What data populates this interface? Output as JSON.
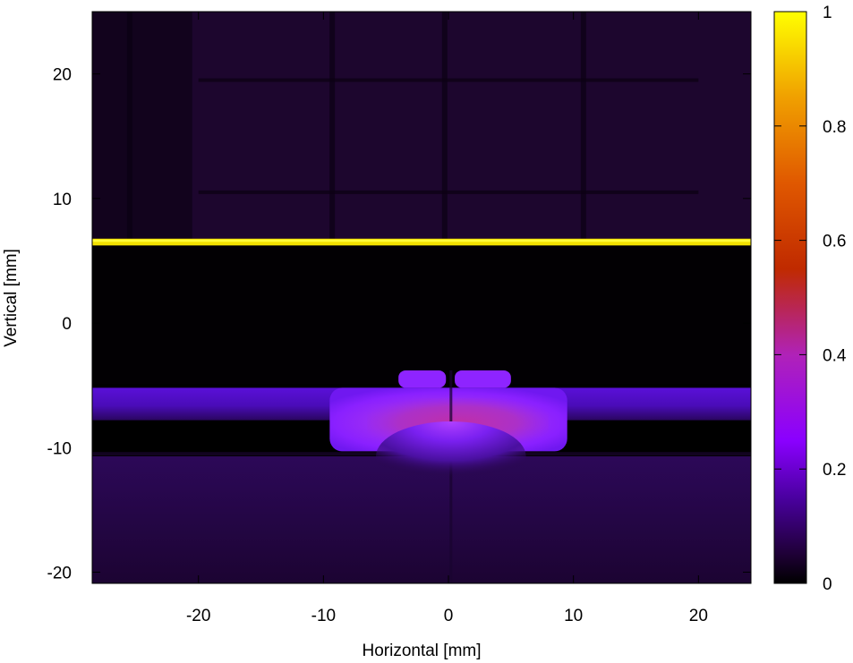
{
  "chart_data": {
    "type": "heatmap",
    "title": "",
    "xlabel": "Horizontal [mm]",
    "ylabel": "Vertical [mm]",
    "xlim": [
      -28.5,
      24.2
    ],
    "ylim": [
      -20.9,
      25.0
    ],
    "x_ticks": [
      -20,
      -10,
      0,
      10,
      20
    ],
    "y_ticks": [
      -20,
      -10,
      0,
      10,
      20
    ],
    "x_tick_labels": [
      "-20",
      "-10",
      "0",
      "10",
      "20"
    ],
    "y_tick_labels": [
      "-20",
      "-10",
      "0",
      "10",
      "20"
    ],
    "colorbar": {
      "range": [
        0,
        1
      ],
      "ticks": [
        0,
        0.2,
        0.4,
        0.6,
        0.8,
        1
      ],
      "tick_labels": [
        "0",
        "0.2",
        "0.4",
        "0.6",
        "0.8",
        "1"
      ],
      "colormap": [
        "#000000",
        "#1e0035",
        "#4a00a0",
        "#8a00ff",
        "#b022b8",
        "#c02a00",
        "#e05800",
        "#f0a000",
        "#ffff00"
      ],
      "colormap_stops": [
        0,
        0.05,
        0.15,
        0.25,
        0.4,
        0.55,
        0.7,
        0.85,
        1
      ]
    },
    "regions": [
      {
        "name": "background-top",
        "x": [
          -28.5,
          24.2
        ],
        "y": [
          6.7,
          25.0
        ],
        "value": 0.06
      },
      {
        "name": "bright-line",
        "x": [
          -28.5,
          24.2
        ],
        "y": [
          6.3,
          6.7
        ],
        "value": 1.0
      },
      {
        "name": "dark-band",
        "x": [
          -28.5,
          24.2
        ],
        "y": [
          -4.9,
          6.3
        ],
        "value": 0.0
      },
      {
        "name": "side-glow",
        "x": [
          -28.5,
          24.2
        ],
        "y": [
          -7.8,
          -5.2
        ],
        "value": 0.22
      },
      {
        "name": "central-blob",
        "x": [
          -9.5,
          9.5
        ],
        "y": [
          -10.3,
          -5.2
        ],
        "value": 0.36
      },
      {
        "name": "central-core",
        "x": [
          -6.5,
          8.0
        ],
        "y": [
          -10.0,
          -6.0
        ],
        "value": 0.42
      },
      {
        "name": "top-bumps-left",
        "x": [
          -4.0,
          -0.2
        ],
        "y": [
          -5.2,
          -3.8
        ],
        "value": 0.28
      },
      {
        "name": "top-bumps-right",
        "x": [
          0.5,
          5.0
        ],
        "y": [
          -5.2,
          -3.8
        ],
        "value": 0.28
      },
      {
        "name": "lower-glow",
        "x": [
          -6.0,
          6.0
        ],
        "y": [
          -13.5,
          -10.7
        ],
        "value": 0.22
      },
      {
        "name": "background-bottom",
        "x": [
          -28.5,
          24.2
        ],
        "y": [
          -20.9,
          -10.7
        ],
        "value": 0.07
      }
    ]
  }
}
